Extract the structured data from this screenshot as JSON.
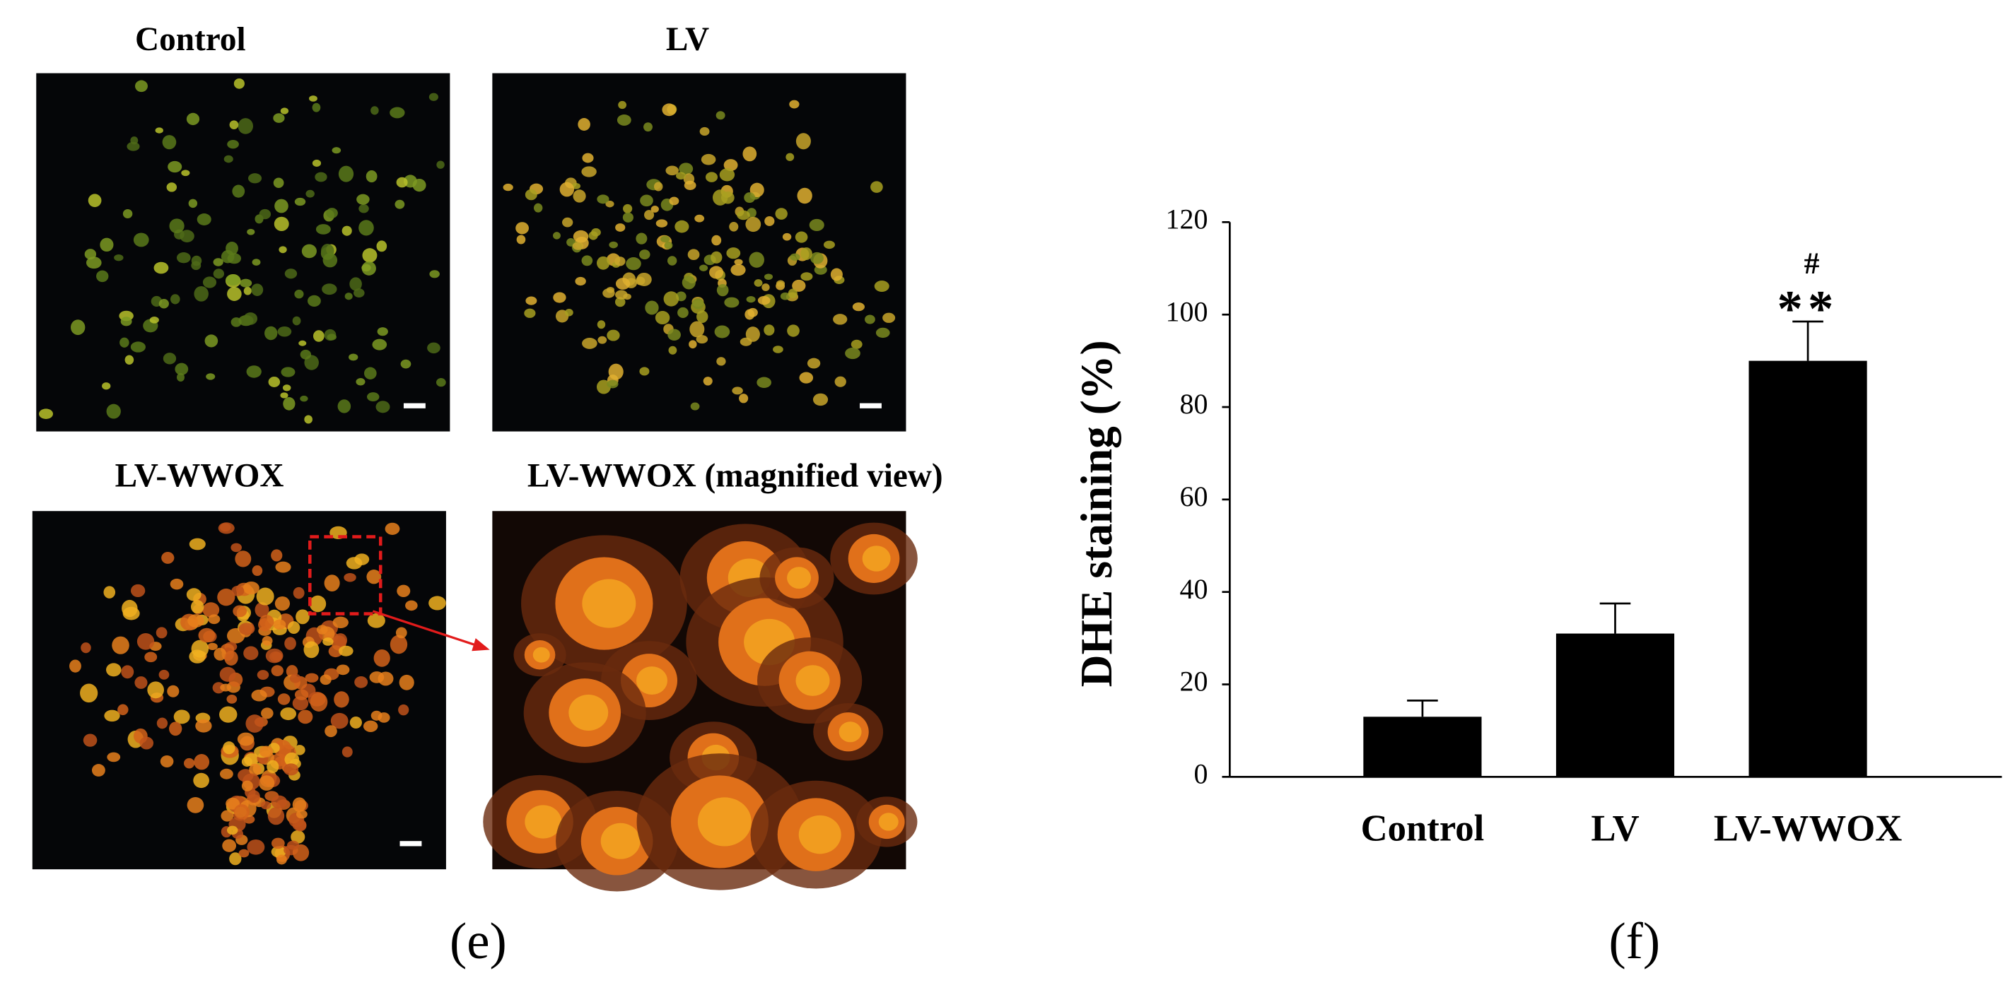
{
  "figure": {
    "image_labels": [
      "Control",
      "LV",
      "LV-WWOX",
      "LV-WWOX (magnified view)"
    ],
    "panel_labels": [
      "(e)",
      "(f)"
    ]
  },
  "chart_data": {
    "type": "bar",
    "y_label": "DHE staining (%)",
    "categories": [
      "Control",
      "LV",
      "LV-WWOX"
    ],
    "values": [
      13,
      31,
      90
    ],
    "errors": [
      3.5,
      6.5,
      8.5
    ],
    "color": "#000000",
    "annotations": [
      "#",
      "**"
    ],
    "ylim": [
      0,
      120
    ],
    "yticks": [
      0,
      20,
      40,
      60,
      80,
      100,
      120
    ]
  }
}
